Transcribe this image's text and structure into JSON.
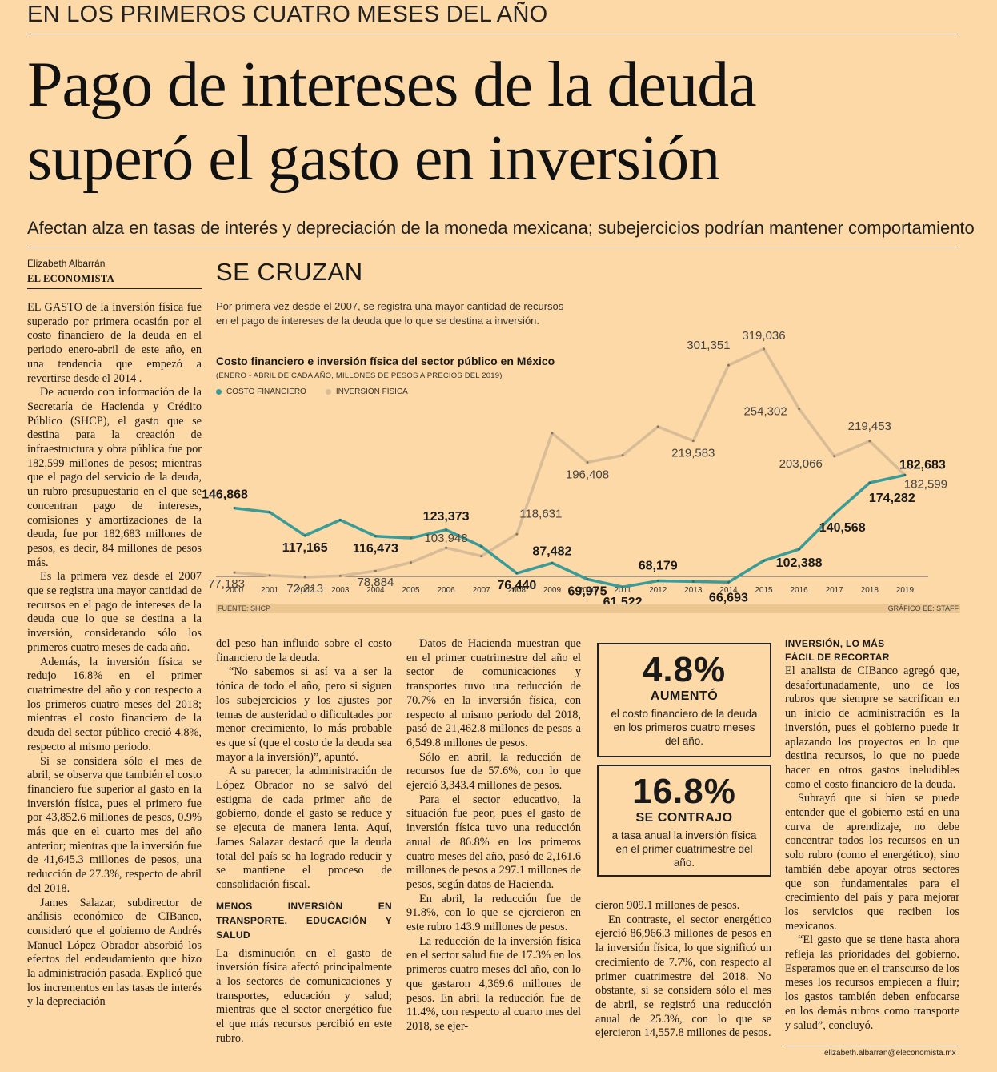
{
  "kicker": "EN LOS PRIMEROS CUATRO MESES DEL AÑO",
  "headline": {
    "line1": "Pago de intereses de la deuda",
    "line2": "superó el gasto en inversión"
  },
  "subhead": "Afectan alza en tasas de interés y depreciación de la moneda mexicana; subejercicios podrían mantener comportamiento",
  "byline": {
    "author": "Elizabeth Albarrán",
    "outlet": "EL ECONOMISTA"
  },
  "col1": [
    "EL GASTO de la inversión física fue superado por primera ocasión por el costo financiero de la deuda en el periodo enero-abril de este año, en una tendencia que empezó a revertirse desde el 2014 .",
    "De acuerdo con información de la Secretaría de Hacienda y Crédito Público (SHCP), el gasto que se destina para la creación de infraestructura y obra pública fue por 182,599 millones de pesos; mientras que el pago del servicio de la deuda, un rubro presupuestario en el que se concentran pago de intereses, comisiones y amortizaciones de la deuda, fue por 182,683 millones de pesos, es decir, 84 millones de pesos más.",
    "Es la primera vez desde el 2007 que se registra una mayor cantidad de recursos en el pago de intereses de la deuda que lo que se destina a la inversión, considerando sólo los primeros cuatro meses de cada año.",
    "Además, la inversión física se redujo 16.8% en el primer cuatrimestre del año y con respecto a los primeros cuatro meses del 2018; mientras el costo financiero de la deuda del sector público creció 4.8%, respecto al mismo periodo.",
    "Si se considera sólo el mes de abril, se observa que también el costo financiero fue superior al gasto en la inversión física, pues el primero fue por 43,852.6 millones de pesos, 0.9% más que en el cuarto mes del año anterior; mientras que la inversión fue de 41,645.3 millones de pesos, una reducción de 27.3%, respecto de abril del 2018.",
    "James Salazar, subdirector de análisis económico de CIBanco, consideró que el gobierno de Andrés Manuel López Obrador absorbió los efectos del endeudamiento que hizo la administración pasada. Explicó que los incrementos en las tasas de interés y la depreciación"
  ],
  "col2": {
    "paras": [
      "del peso han influido sobre el costo financiero de la deuda.",
      "“No sabemos si así va a ser la tónica de todo el año, pero si siguen los subejercicios y los ajustes por temas de austeridad o dificultades por menor crecimiento, lo más probable es que sí (que el costo de la deuda sea mayor a la inversión)”, apuntó.",
      "A su parecer, la administración de López Obrador no se salvó del estigma de cada primer año de gobierno, donde el gasto se reduce y se ejecuta de manera lenta. Aquí, James Salazar destacó que la deuda total del país se ha logrado reducir y se mantiene el proceso de consolidación fiscal."
    ],
    "section": "MENOS INVERSIÓN EN TRANSPORTE, EDUCACIÓN Y SALUD",
    "paras2": [
      "La disminución en el gasto de inversión física afectó principalmente a los sectores de comunicaciones y transportes, educación y salud; mientras que el sector energético fue el que más recursos percibió en este rubro."
    ]
  },
  "col3": [
    "Datos de Hacienda muestran que en el primer cuatrimestre del año el sector de comunicaciones y transportes tuvo una reducción de 70.7% en la inversión física, con respecto al mismo periodo del 2018, pasó de 21,462.8 millones de pesos a 6,549.8 millones de pesos.",
    "Sólo en abril, la reducción de recursos fue de 57.6%, con lo que ejerció 3,343.4 millones de pesos.",
    "Para el sector educativo, la situación fue peor, pues el gasto de inversión física tuvo una reducción anual de 86.8% en los primeros cuatro meses del año, pasó de 2,161.6 millones de pesos a 297.1 millones de pesos, según datos de Hacienda.",
    "En abril, la reducción fue de 91.8%, con lo que se ejercieron en este rubro 143.9 millones de pesos.",
    "La reducción de la inversión física en el sector salud fue de 17.3% en los primeros cuatro meses del año, con lo que gastaron 4,369.6 millones de pesos. En abril la reducción fue de 11.4%, con respecto al cuarto mes del 2018, se ejer-"
  ],
  "col4": [
    "cieron 909.1 millones de pesos.",
    "En contraste, el sector energético ejerció 86,966.3 millones de pesos en la inversión física, lo que significó un crecimiento de 7.7%, con respecto al primer cuatrimestre del 2018. No obstante, si se considera sólo el mes de abril, se registró una reducción anual de 25.3%, con lo que se ejercieron 14,557.8 millones de pesos."
  ],
  "box1": {
    "value": "4.8%",
    "label": "AUMENTÓ",
    "text": "el costo financiero de la deuda en los primeros cuatro meses del año."
  },
  "box2": {
    "value": "16.8%",
    "label": "SE CONTRAJO",
    "text": "a tasa anual la inversión física en el primer cuatrimestre del año."
  },
  "col5": {
    "section_l1": "INVERSIÓN, LO MÁS",
    "section_l2": "FÁCIL DE RECORTAR",
    "paras": [
      "El analista de CIBanco agregó que, desafortunadamente, uno de los rubros que siempre se sacrifican en un inicio de administración es la inversión, pues el gobierno puede ir aplazando los proyectos en lo que destina recursos, lo que no puede hacer en otros gastos ineludibles como el costo financiero de la deuda.",
      "Subrayó que si bien se puede entender que el gobierno está en una curva de aprendizaje, no debe concentrar todos los recursos en un solo rubro (como el energético), sino también debe apoyar otros sectores que son fundamentales para el crecimiento del país y para mejorar los servicios que reciben los mexicanos.",
      "“El gasto que se tiene hasta ahora refleja las prioridades del gobierno. Esperamos que en el transcurso de los meses los recursos empiecen a fluir; los gastos también deben enfocarse en los demás rubros como transporte y salud”, concluyó."
    ],
    "email": "elizabeth.albarran@eleconomista.mx"
  },
  "chart": {
    "title": "SE CRUZAN",
    "desc_l1": "Por primera vez desde el 2007, se registra una mayor cantidad de recursos",
    "desc_l2": "en el pago de intereses de la deuda que lo que se destina a inversión.",
    "subtitle": "Costo financiero e inversión física del sector público en México",
    "subtitle2": "(ENERO - ABRIL DE CADA AÑO,  MILLONES DE PESOS A PRECIOS DEL 2019)",
    "source": "FUENTE: SHCP",
    "credit": "GRÁFICO EE: STAFF",
    "colors": {
      "costo": "#3a9c98",
      "inversion": "#d8bb97"
    }
  },
  "chart_data": {
    "type": "line",
    "x": [
      "2000",
      "2001",
      "2002",
      "2003",
      "2004",
      "2005",
      "2006",
      "2007",
      "2008",
      "2009",
      "2010",
      "2011",
      "2012",
      "2013",
      "2014",
      "2015",
      "2016",
      "2017",
      "2018",
      "2019"
    ],
    "series": [
      {
        "name": "COSTO FINANCIERO",
        "values": [
          146868,
          142500,
          117165,
          134000,
          116473,
          114500,
          123373,
          105500,
          76440,
          87482,
          69975,
          61522,
          68179,
          67500,
          66693,
          90000,
          102388,
          140568,
          174282,
          182683
        ],
        "labels": [
          "146,868",
          null,
          "117,165",
          null,
          "116,473",
          null,
          "123,373",
          null,
          "76,440",
          "87,482",
          "69,975",
          "61,522",
          "68,179",
          null,
          "66,693",
          null,
          "102,388",
          "140,568",
          "174,282",
          "182,683"
        ]
      },
      {
        "name": "INVERSIÓN FÍSICA",
        "values": [
          77183,
          74000,
          72213,
          73500,
          78884,
          88000,
          103948,
          95000,
          118631,
          228000,
          196408,
          204000,
          235000,
          219583,
          301351,
          319036,
          254302,
          203066,
          219453,
          182599
        ],
        "labels": [
          "77,183",
          null,
          "72,213",
          null,
          "78,884",
          null,
          "103,948",
          null,
          "118,631",
          null,
          "196,408",
          null,
          null,
          "219,583",
          "301,351",
          "319,036",
          "254,302",
          "203,066",
          "219,453",
          "182,599"
        ]
      }
    ]
  }
}
